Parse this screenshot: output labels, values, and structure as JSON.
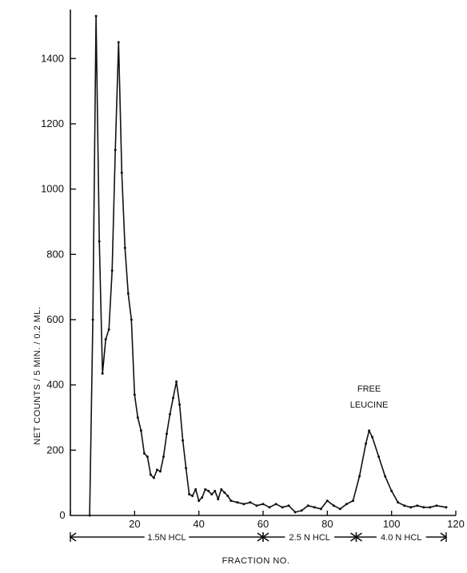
{
  "chart_data": {
    "type": "line",
    "title": "",
    "xlabel": "FRACTION NO.",
    "ylabel": "NET COUNTS / 5 MIN. / 0.2 ML.",
    "xlim": [
      0,
      120
    ],
    "ylim": [
      0,
      1550
    ],
    "grid": false,
    "xticks": [
      0,
      20,
      40,
      60,
      80,
      100,
      120
    ],
    "xtick_labels": [
      "0",
      "20",
      "40",
      "60",
      "80",
      "100",
      "120"
    ],
    "yticks": [
      200,
      400,
      600,
      800,
      1000,
      1200,
      1400
    ],
    "ytick_labels": [
      "200",
      "400",
      "600",
      "800",
      "1000",
      "1200",
      "1400"
    ],
    "series": [
      {
        "x": [
          6,
          7,
          8,
          9,
          10,
          11,
          12,
          13,
          14,
          15,
          16,
          17,
          18,
          19,
          20,
          21,
          22,
          23,
          24,
          25,
          26,
          27,
          28,
          29,
          30,
          31,
          32,
          33,
          34,
          35,
          36,
          37,
          38,
          39,
          40,
          41,
          42,
          43,
          44,
          45,
          46,
          47,
          48,
          49,
          50,
          52,
          54,
          56,
          58,
          60,
          62,
          64,
          66,
          68,
          70,
          72,
          74,
          76,
          78,
          80,
          82,
          84,
          86,
          88,
          90,
          92,
          93,
          94,
          96,
          98,
          100,
          102,
          104,
          106,
          108,
          110,
          112,
          114,
          117
        ],
        "y": [
          0,
          600,
          1530,
          840,
          435,
          540,
          570,
          750,
          1120,
          1450,
          1050,
          820,
          680,
          600,
          370,
          300,
          260,
          190,
          180,
          125,
          115,
          140,
          135,
          180,
          250,
          310,
          360,
          410,
          340,
          230,
          145,
          65,
          60,
          80,
          45,
          55,
          80,
          75,
          65,
          75,
          50,
          80,
          70,
          60,
          45,
          40,
          35,
          40,
          30,
          35,
          25,
          35,
          25,
          30,
          10,
          15,
          30,
          25,
          20,
          45,
          30,
          20,
          35,
          45,
          120,
          220,
          260,
          240,
          180,
          120,
          75,
          40,
          30,
          25,
          30,
          25,
          25,
          30,
          25
        ]
      }
    ],
    "annotations": [
      {
        "text": "FREE",
        "x": 93,
        "y": 380
      },
      {
        "text": "LEUCINE",
        "x": 93,
        "y": 330
      }
    ],
    "elution_segments": [
      {
        "label": "1.5N HCL",
        "from": 0,
        "to": 60
      },
      {
        "label": "2.5 N HCL",
        "from": 60,
        "to": 89
      },
      {
        "label": "4.0 N HCL",
        "from": 89,
        "to": 117
      }
    ]
  }
}
